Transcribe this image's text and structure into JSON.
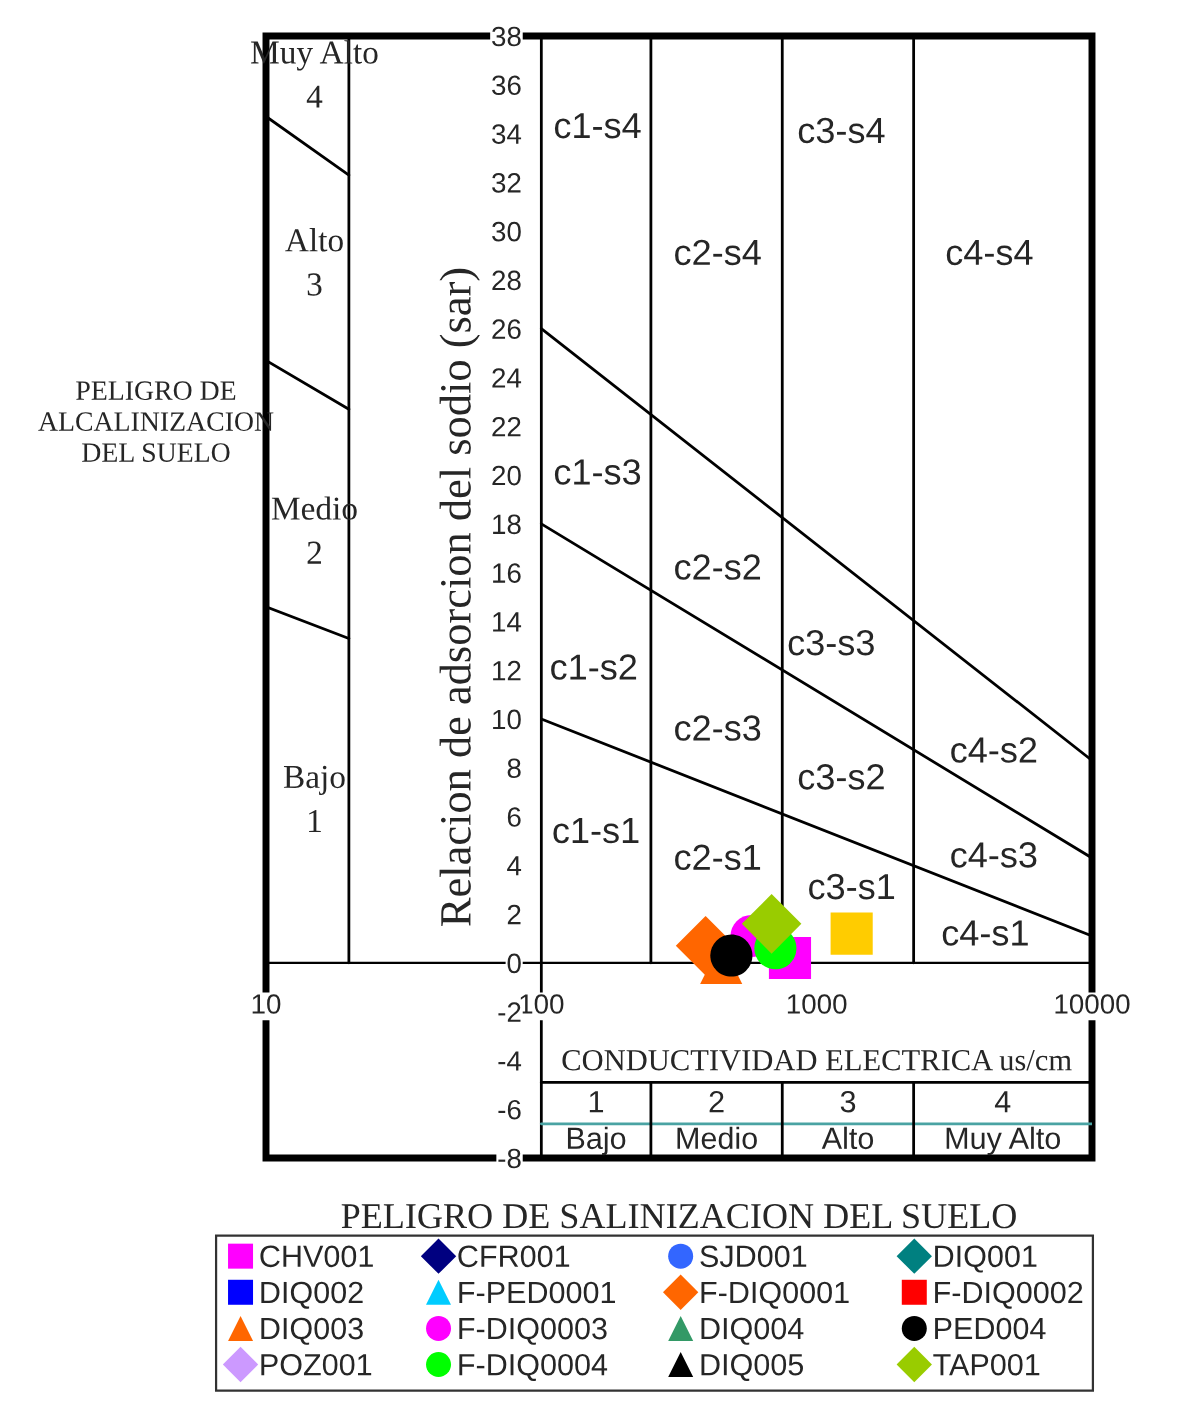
{
  "chart_data": {
    "type": "scatter",
    "log": "x",
    "xlim": [
      10,
      10000
    ],
    "ylim": [
      -8,
      38
    ],
    "xticks": [
      10,
      100,
      1000,
      10000
    ],
    "yticks": [
      -8,
      -6,
      -4,
      -2,
      0,
      2,
      4,
      6,
      8,
      10,
      12,
      14,
      16,
      18,
      20,
      22,
      24,
      26,
      28,
      30,
      32,
      34,
      36,
      38
    ],
    "ylabel": "Relacion de adsorcion del sodio (sar)",
    "xlabel": "PELIGRO DE SALINIZACION DEL SUELO",
    "legend": "bottom",
    "grid": false,
    "series": [
      {
        "name": "CHV001",
        "color": "#ff00ff",
        "marker": "square",
        "x": [
          800
        ],
        "values": [
          0.2
        ]
      },
      {
        "name": "CFR001",
        "color": "#000080",
        "marker": "diamond",
        "x": [
          null
        ],
        "values": [
          null
        ]
      },
      {
        "name": "SJD001",
        "color": "#3366ff",
        "marker": "circle",
        "x": [
          null
        ],
        "values": [
          null
        ]
      },
      {
        "name": "DIQ001",
        "color": "#008080",
        "marker": "diamond",
        "x": [
          null
        ],
        "values": [
          null
        ]
      },
      {
        "name": "DIQ002",
        "color": "#0000ff",
        "marker": "square",
        "x": [
          null
        ],
        "values": [
          null
        ]
      },
      {
        "name": "F-PED0001",
        "color": "#00ccff",
        "marker": "triangle",
        "x": [
          null
        ],
        "values": [
          null
        ]
      },
      {
        "name": "F-DIQ0001",
        "color": "#ff6600",
        "marker": "diamond",
        "x": [
          395
        ],
        "values": [
          0.7
        ]
      },
      {
        "name": "F-DIQ0002",
        "color": "#ff0000",
        "marker": "square",
        "x": [
          null
        ],
        "values": [
          null
        ]
      },
      {
        "name": "DIQ003",
        "color": "#ff6600",
        "marker": "triangle",
        "x": [
          450
        ],
        "values": [
          0
        ]
      },
      {
        "name": "F-DIQ0003",
        "color": "#ff00ff",
        "marker": "circle",
        "x": [
          580
        ],
        "values": [
          1.1
        ]
      },
      {
        "name": "DIQ004",
        "color": "#339966",
        "marker": "triangle",
        "x": [
          null
        ],
        "values": [
          null
        ]
      },
      {
        "name": "PED004",
        "color": "#000000",
        "marker": "circle",
        "x": [
          490
        ],
        "values": [
          0.3
        ]
      },
      {
        "name": "POZ001",
        "color": "#cc99ff",
        "marker": "diamond",
        "x": [
          null
        ],
        "values": [
          null
        ]
      },
      {
        "name": "F-DIQ0004",
        "color": "#00ff00",
        "marker": "circle",
        "x": [
          708
        ],
        "values": [
          0.6
        ]
      },
      {
        "name": "DIQ005",
        "color": "#000000",
        "marker": "triangle",
        "x": [
          null
        ],
        "values": [
          null
        ]
      },
      {
        "name": "TAP001",
        "color": "#99cc00",
        "marker": "diamond",
        "x": [
          686
        ],
        "values": [
          1.6
        ]
      },
      {
        "color": "#ffcc00",
        "marker": "square",
        "x": [
          1340
        ],
        "values": [
          1.2
        ]
      },
      {
        "type": "line",
        "color": "#000000",
        "x": [
          100,
          10000
        ],
        "values": [
          26,
          8.3
        ]
      },
      {
        "type": "line",
        "color": "#000000",
        "x": [
          100,
          10000
        ],
        "values": [
          18,
          4.3
        ]
      },
      {
        "type": "line",
        "color": "#000000",
        "x": [
          100,
          10000
        ],
        "values": [
          10,
          1.1
        ]
      },
      {
        "type": "line",
        "color": "#000000",
        "x": [
          100,
          100
        ],
        "values": [
          -8,
          38
        ]
      },
      {
        "type": "line",
        "color": "#000000",
        "x": [
          250,
          250
        ],
        "values": [
          0,
          38
        ]
      },
      {
        "type": "line",
        "color": "#000000",
        "x": [
          750,
          750
        ],
        "values": [
          0,
          38
        ]
      },
      {
        "type": "line",
        "color": "#000000",
        "x": [
          2250,
          2250
        ],
        "values": [
          0,
          38
        ]
      },
      {
        "type": "line",
        "color": "#000000",
        "x": [
          20,
          20
        ],
        "values": [
          0,
          38
        ]
      },
      {
        "type": "line",
        "color": "#000000",
        "x": [
          10,
          20
        ],
        "values": [
          34.7,
          32.3
        ]
      },
      {
        "type": "line",
        "color": "#000000",
        "x": [
          10,
          20
        ],
        "values": [
          24.7,
          22.7
        ]
      },
      {
        "type": "line",
        "color": "#000000",
        "x": [
          10,
          20
        ],
        "values": [
          14.6,
          13.3
        ]
      },
      {
        "type": "line",
        "color": "#000000",
        "x": [
          100,
          10000
        ],
        "values": [
          -4.9,
          -4.9
        ]
      },
      {
        "type": "line",
        "color": "#4aa3a3",
        "x": [
          100,
          10000
        ],
        "values": [
          -6.6,
          -6.6
        ]
      },
      {
        "type": "line",
        "color": "#000000",
        "x": [
          250,
          250
        ],
        "values": [
          -8,
          -4.9
        ]
      },
      {
        "type": "line",
        "color": "#000000",
        "x": [
          750,
          750
        ],
        "values": [
          -8,
          -4.9
        ]
      },
      {
        "type": "line",
        "color": "#000000",
        "x": [
          2250,
          2250
        ],
        "values": [
          -8,
          -4.9
        ]
      }
    ],
    "annotations": [
      "PELIGRO DE\nALCALINIZACION\nDEL SUELO",
      "Muy Alto\n4",
      "Alto\n3",
      "Medio\n2",
      "Bajo\n1",
      "c1-s4",
      "c2-s4",
      "c3-s4",
      "c4-s4",
      "c1-s3",
      "c2-s2",
      "c3-s3",
      "c1-s2",
      "c2-s3",
      "c3-s2",
      "c4-s2",
      "c1-s1",
      "c2-s1",
      "c3-s1",
      "c4-s3",
      "c4-s1",
      "CONDUCTIVIDAD ELECTRICA us/cm",
      "1",
      "2",
      "3",
      "4",
      "Bajo",
      "Medio",
      "Alto",
      "Muy Alto"
    ]
  }
}
